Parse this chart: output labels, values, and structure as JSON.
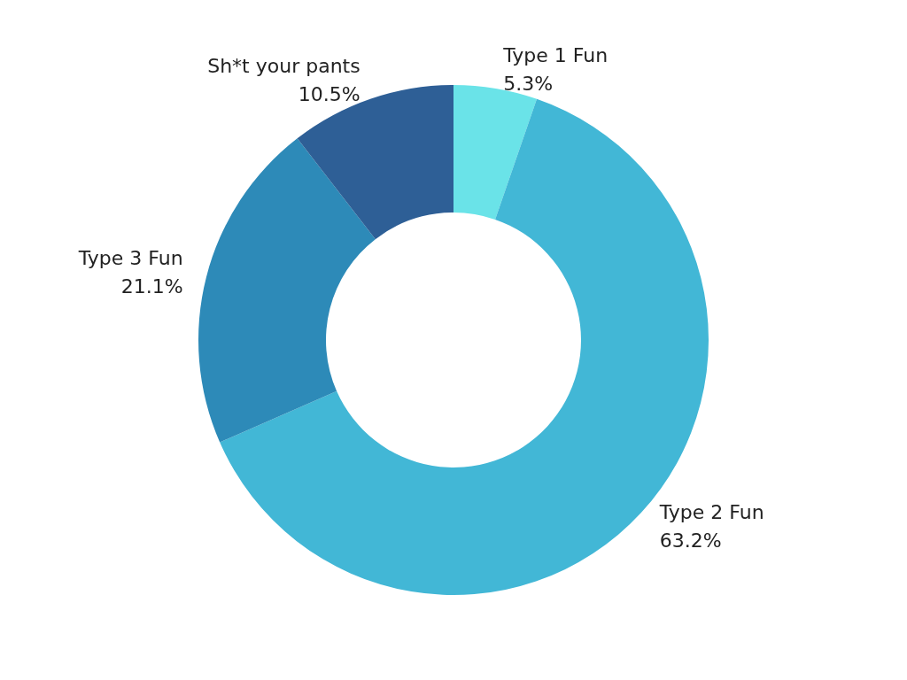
{
  "chart_data": {
    "type": "donut",
    "categories": [
      "Type 1 Fun",
      "Type 2 Fun",
      "Type 3 Fun",
      "Sh*t your pants"
    ],
    "values": [
      5.3,
      63.2,
      21.1,
      10.5
    ],
    "value_labels": [
      "5.3%",
      "63.2%",
      "21.1%",
      "10.5%"
    ],
    "colors": [
      "#6ae3e8",
      "#42b7d6",
      "#2d8ab8",
      "#2e5f96"
    ],
    "legend": false
  }
}
